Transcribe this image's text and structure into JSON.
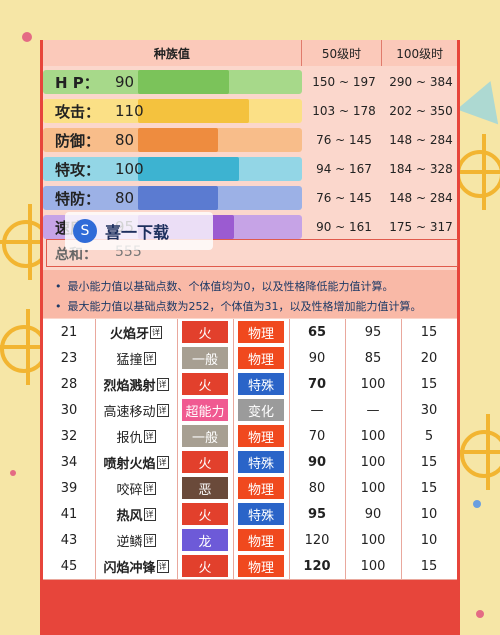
{
  "stats": {
    "header": {
      "base": "种族值",
      "lv50": "50级时",
      "lv100": "100级时"
    },
    "rows": [
      {
        "name": "H P：",
        "value": "90",
        "range50": "150 ~ 197",
        "range100": "290 ~ 384",
        "bar_fill": 0.35,
        "color": "#7bc35a",
        "track": "#a7d98a"
      },
      {
        "name": "攻击：",
        "value": "110",
        "range50": "103 ~ 178",
        "range100": "202 ~ 350",
        "bar_fill": 0.43,
        "color": "#f4c23e",
        "track": "#fbe086"
      },
      {
        "name": "防御：",
        "value": "80",
        "range50": "76 ~ 145",
        "range100": "148 ~ 284",
        "bar_fill": 0.31,
        "color": "#ee8c3f",
        "track": "#f8bd8a"
      },
      {
        "name": "特攻：",
        "value": "100",
        "range50": "94 ~ 167",
        "range100": "184 ~ 328",
        "bar_fill": 0.39,
        "color": "#3db3d1",
        "track": "#93d6e6"
      },
      {
        "name": "特防：",
        "value": "80",
        "range50": "76 ~ 145",
        "range100": "148 ~ 284",
        "bar_fill": 0.31,
        "color": "#5b7bd1",
        "track": "#9cb1e6"
      },
      {
        "name": "速度：",
        "value": "95",
        "range50": "90 ~ 161",
        "range100": "175 ~ 317",
        "bar_fill": 0.37,
        "color": "#9b5bd1",
        "track": "#c6a3e6"
      }
    ],
    "total_label": "总和：",
    "total_value": "555"
  },
  "notes": [
    "最小能力值以基础点数、个体值均为0，以及性格降低能力值计算。",
    "最大能力值以基础点数为252，个体值为31，以及性格增加能力值计算。"
  ],
  "watermark": {
    "text": "喜一下载",
    "logo_icon": "swirl-logo-icon"
  },
  "moves": [
    {
      "lv": "21",
      "name": "火焰牙",
      "tag": "详",
      "type": "火",
      "type_color": "#e2402c",
      "cat": "物理",
      "cat_color": "#f0491e",
      "power": "65",
      "acc": "95",
      "pp": "15",
      "bold": true
    },
    {
      "lv": "23",
      "name": "猛撞",
      "tag": "详",
      "type": "一般",
      "type_color": "#a79f92",
      "cat": "物理",
      "cat_color": "#f0491e",
      "power": "90",
      "acc": "85",
      "pp": "20",
      "bold": false
    },
    {
      "lv": "28",
      "name": "烈焰溅射",
      "tag": "详",
      "type": "火",
      "type_color": "#e2402c",
      "cat": "特殊",
      "cat_color": "#2a64c8",
      "power": "70",
      "acc": "100",
      "pp": "15",
      "bold": true
    },
    {
      "lv": "30",
      "name": "高速移动",
      "tag": "详",
      "type": "超能力",
      "type_color": "#f05a91",
      "cat": "变化",
      "cat_color": "#9b9b9b",
      "power": "—",
      "acc": "—",
      "pp": "30",
      "bold": false
    },
    {
      "lv": "32",
      "name": "报仇",
      "tag": "详",
      "type": "一般",
      "type_color": "#a79f92",
      "cat": "物理",
      "cat_color": "#f0491e",
      "power": "70",
      "acc": "100",
      "pp": "5",
      "bold": false
    },
    {
      "lv": "34",
      "name": "喷射火焰",
      "tag": "详",
      "type": "火",
      "type_color": "#e2402c",
      "cat": "特殊",
      "cat_color": "#2a64c8",
      "power": "90",
      "acc": "100",
      "pp": "15",
      "bold": true
    },
    {
      "lv": "39",
      "name": "咬碎",
      "tag": "详",
      "type": "恶",
      "type_color": "#6a4a3a",
      "cat": "物理",
      "cat_color": "#f0491e",
      "power": "80",
      "acc": "100",
      "pp": "15",
      "bold": false
    },
    {
      "lv": "41",
      "name": "热风",
      "tag": "详",
      "type": "火",
      "type_color": "#e2402c",
      "cat": "特殊",
      "cat_color": "#2a64c8",
      "power": "95",
      "acc": "90",
      "pp": "10",
      "bold": true
    },
    {
      "lv": "43",
      "name": "逆鳞",
      "tag": "详",
      "type": "龙",
      "type_color": "#6d5ad8",
      "cat": "物理",
      "cat_color": "#f0491e",
      "power": "120",
      "acc": "100",
      "pp": "10",
      "bold": false
    },
    {
      "lv": "45",
      "name": "闪焰冲锋",
      "tag": "详",
      "type": "火",
      "type_color": "#e2402c",
      "cat": "物理",
      "cat_color": "#f0491e",
      "power": "120",
      "acc": "100",
      "pp": "15",
      "bold": true
    }
  ]
}
